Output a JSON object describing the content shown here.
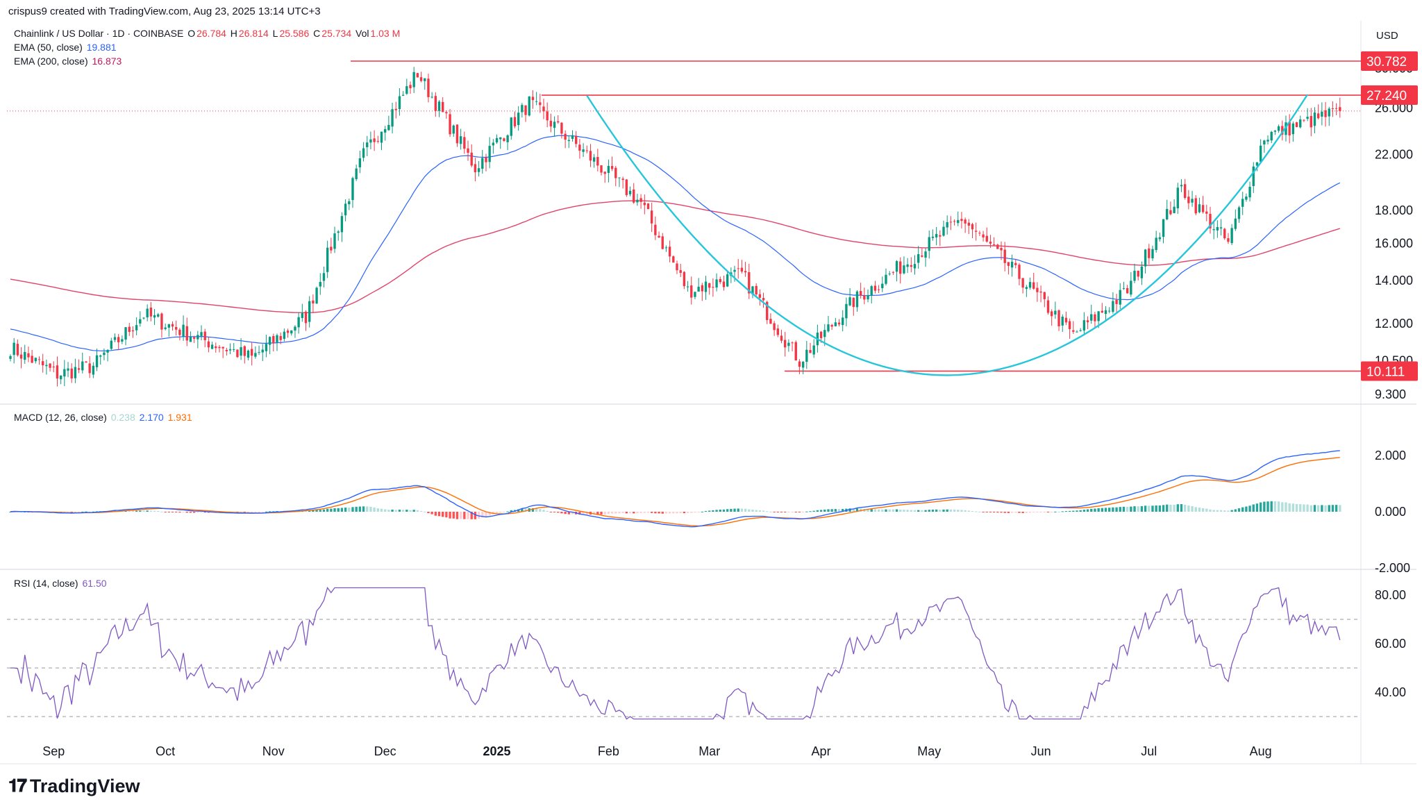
{
  "header": {
    "attribution": "crispus9 created with TradingView.com, Aug 23, 2025 13:14 UTC+3"
  },
  "legend": {
    "symbol": "Chainlink / US Dollar · 1D · COINBASE",
    "o_label": "O",
    "o": "26.784",
    "h_label": "H",
    "h": "26.814",
    "l_label": "L",
    "l": "25.586",
    "c_label": "C",
    "c": "25.734",
    "vol_label": "Vol",
    "vol": "1.03 M",
    "ema50_label": "EMA (50, close)",
    "ema50_value": "19.881",
    "ema200_label": "EMA (200, close)",
    "ema200_value": "16.873",
    "macd_label": "MACD (12, 26, close)",
    "macd_hist": "0.238",
    "macd_line": "2.170",
    "macd_signal": "1.931",
    "rsi_label": "RSI (14, close)",
    "rsi_value": "61.50"
  },
  "watermark": "TradingView",
  "colors": {
    "up": "#089981",
    "down": "#f23645",
    "ema50": "#2962ff",
    "ema200": "#e0446a",
    "curve": "#26c6da",
    "level": "#f23645",
    "rsi": "#7e57c2",
    "macd": "#2962ff",
    "signal": "#ff6d00"
  },
  "chart_data": [
    {
      "type": "candlestick",
      "title": "Chainlink / US Dollar · 1D · COINBASE",
      "currency": "USD",
      "x": [
        "Sep",
        "Oct",
        "Nov",
        "Dec",
        "2025",
        "Feb",
        "Mar",
        "Apr",
        "May",
        "Jun",
        "Jul",
        "Aug"
      ],
      "y_ticks": [
        "9.300",
        "10.500",
        "12.000",
        "14.000",
        "16.000",
        "18.000",
        "22.000",
        "26.000",
        "30.000"
      ],
      "ylim": [
        9.3,
        30.78
      ],
      "scale": "log",
      "levels": [
        {
          "value": 30.782,
          "label": "30.782"
        },
        {
          "value": 27.24,
          "label": "27.240"
        },
        {
          "value": 10.111,
          "label": "10.111"
        }
      ],
      "last_price": 25.734,
      "close_path": [
        [
          "Sep",
          11.0
        ],
        [
          "Sep",
          10.0
        ],
        [
          "Sep",
          10.3
        ],
        [
          "Oct",
          12.4
        ],
        [
          "Oct",
          11.4
        ],
        [
          "Nov",
          10.6
        ],
        [
          "Nov",
          12.3
        ],
        [
          "Dec",
          22.0
        ],
        [
          "Dec",
          29.5
        ],
        [
          "2025",
          21.0
        ],
        [
          "2025",
          26.5
        ],
        [
          "Feb",
          22.0
        ],
        [
          "Feb",
          18.5
        ],
        [
          "Mar",
          13.5
        ],
        [
          "Mar",
          14.3
        ],
        [
          "Apr",
          10.5
        ],
        [
          "Apr",
          13.0
        ],
        [
          "May",
          15.0
        ],
        [
          "May",
          17.5
        ],
        [
          "Jun",
          14.2
        ],
        [
          "Jun",
          11.5
        ],
        [
          "Jul",
          13.5
        ],
        [
          "Jul",
          19.5
        ],
        [
          "Aug",
          16.0
        ],
        [
          "Aug",
          23.5
        ],
        [
          "Aug",
          25.73
        ]
      ],
      "series": [
        {
          "name": "EMA (50, close)",
          "last": 19.881
        },
        {
          "name": "EMA (200, close)",
          "last": 16.873
        }
      ]
    },
    {
      "type": "line",
      "title": "MACD (12, 26, close)",
      "y_ticks": [
        "-2.000",
        "0.000",
        "2.000"
      ],
      "ylim": [
        -2.0,
        3.2
      ],
      "series": [
        {
          "name": "MACD",
          "last": 2.17
        },
        {
          "name": "Signal",
          "last": 1.931
        },
        {
          "name": "Histogram",
          "last": 0.238
        }
      ]
    },
    {
      "type": "line",
      "title": "RSI (14, close)",
      "y_ticks": [
        "40.00",
        "60.00",
        "80.00"
      ],
      "bands": [
        30,
        50,
        70
      ],
      "ylim": [
        28,
        84
      ],
      "series": [
        {
          "name": "RSI",
          "last": 61.5
        }
      ]
    }
  ]
}
